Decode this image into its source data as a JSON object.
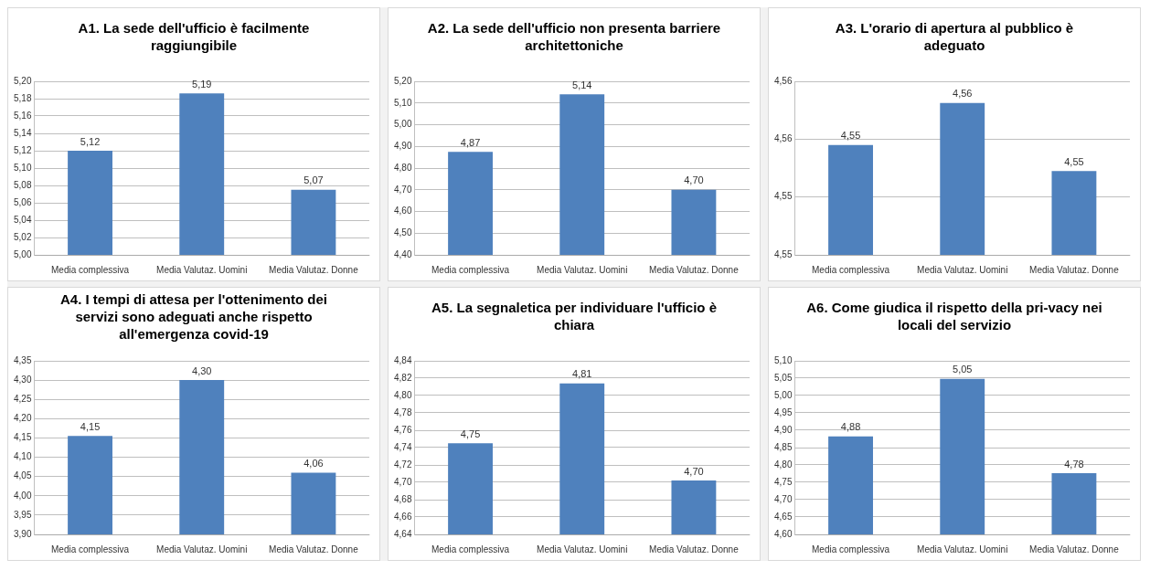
{
  "chart_data": [
    {
      "type": "bar",
      "title": "A1. La sede dell'ufficio è facilmente raggiungibile",
      "categories": [
        "Media complessiva",
        "Media Valutaz. Uomini",
        "Media Valutaz. Donne"
      ],
      "values": [
        5.12,
        5.186,
        5.075
      ],
      "value_labels": [
        "5,12",
        "5,19",
        "5,07"
      ],
      "color": "#4f81bd",
      "ylim": [
        5.0,
        5.2
      ],
      "yticks": [
        {
          "value": 5.0,
          "label": "5,00"
        },
        {
          "value": 5.02,
          "label": "5,02"
        },
        {
          "value": 5.04,
          "label": "5,04"
        },
        {
          "value": 5.06,
          "label": "5,06"
        },
        {
          "value": 5.08,
          "label": "5,08"
        },
        {
          "value": 5.1,
          "label": "5,10"
        },
        {
          "value": 5.12,
          "label": "5,12"
        },
        {
          "value": 5.14,
          "label": "5,14"
        },
        {
          "value": 5.16,
          "label": "5,16"
        },
        {
          "value": 5.18,
          "label": "5,18"
        },
        {
          "value": 5.2,
          "label": "5,20"
        }
      ],
      "grid": "y"
    },
    {
      "type": "bar",
      "title": "A2. La sede dell'ufficio non presenta barriere architettoniche",
      "categories": [
        "Media complessiva",
        "Media Valutaz. Uomini",
        "Media Valutaz. Donne"
      ],
      "values": [
        4.875,
        5.14,
        4.7
      ],
      "value_labels": [
        "4,87",
        "5,14",
        "4,70"
      ],
      "color": "#4f81bd",
      "ylim": [
        4.4,
        5.2
      ],
      "yticks": [
        {
          "value": 4.4,
          "label": "4,40"
        },
        {
          "value": 4.5,
          "label": "4,50"
        },
        {
          "value": 4.6,
          "label": "4,60"
        },
        {
          "value": 4.7,
          "label": "4,70"
        },
        {
          "value": 4.8,
          "label": "4,80"
        },
        {
          "value": 4.9,
          "label": "4,90"
        },
        {
          "value": 5.0,
          "label": "5,00"
        },
        {
          "value": 5.1,
          "label": "5,10"
        },
        {
          "value": 5.2,
          "label": "5,20"
        }
      ],
      "grid": "y"
    },
    {
      "type": "bar",
      "title": "A3. L'orario di apertura al pubblico è adeguato",
      "categories": [
        "Media complessiva",
        "Media Valutaz. Uomini",
        "Media Valutaz. Donne"
      ],
      "values": [
        4.5546,
        4.5575,
        4.5528
      ],
      "value_labels": [
        "4,55",
        "4,56",
        "4,55"
      ],
      "color": "#4f81bd",
      "ylim": [
        4.547,
        4.559
      ],
      "yticks": [
        {
          "value": 4.547,
          "label": "4,55"
        },
        {
          "value": 4.551,
          "label": "4,55"
        },
        {
          "value": 4.555,
          "label": "4,56"
        },
        {
          "value": 4.559,
          "label": "4,56"
        }
      ],
      "grid": "y"
    },
    {
      "type": "bar",
      "title": "A4. I tempi di attesa per l'ottenimento dei servizi sono adeguati anche rispetto all'emergenza covid-19",
      "categories": [
        "Media complessiva",
        "Media Valutaz. Uomini",
        "Media Valutaz. Donne"
      ],
      "values": [
        4.155,
        4.3,
        4.06
      ],
      "value_labels": [
        "4,15",
        "4,30",
        "4,06"
      ],
      "color": "#4f81bd",
      "ylim": [
        3.9,
        4.35
      ],
      "yticks": [
        {
          "value": 3.9,
          "label": "3,90"
        },
        {
          "value": 3.95,
          "label": "3,95"
        },
        {
          "value": 4.0,
          "label": "4,00"
        },
        {
          "value": 4.05,
          "label": "4,05"
        },
        {
          "value": 4.1,
          "label": "4,10"
        },
        {
          "value": 4.15,
          "label": "4,15"
        },
        {
          "value": 4.2,
          "label": "4,20"
        },
        {
          "value": 4.25,
          "label": "4,25"
        },
        {
          "value": 4.3,
          "label": "4,30"
        },
        {
          "value": 4.35,
          "label": "4,35"
        }
      ],
      "grid": "y"
    },
    {
      "type": "bar",
      "title": "A5. La segnaletica per individuare l'ufficio è chiara",
      "categories": [
        "Media complessiva",
        "Media Valutaz. Uomini",
        "Media Valutaz. Donne"
      ],
      "values": [
        4.745,
        4.814,
        4.702
      ],
      "value_labels": [
        "4,75",
        "4,81",
        "4,70"
      ],
      "color": "#4f81bd",
      "ylim": [
        4.64,
        4.84
      ],
      "yticks": [
        {
          "value": 4.64,
          "label": "4,64"
        },
        {
          "value": 4.66,
          "label": "4,66"
        },
        {
          "value": 4.68,
          "label": "4,68"
        },
        {
          "value": 4.7,
          "label": "4,70"
        },
        {
          "value": 4.72,
          "label": "4,72"
        },
        {
          "value": 4.74,
          "label": "4,74"
        },
        {
          "value": 4.76,
          "label": "4,76"
        },
        {
          "value": 4.78,
          "label": "4,78"
        },
        {
          "value": 4.8,
          "label": "4,80"
        },
        {
          "value": 4.82,
          "label": "4,82"
        },
        {
          "value": 4.84,
          "label": "4,84"
        }
      ],
      "grid": "y"
    },
    {
      "type": "bar",
      "title": "A6. Come giudica il rispetto della pri-vacy nei locali del servizio",
      "categories": [
        "Media complessiva",
        "Media Valutaz. Uomini",
        "Media Valutaz. Donne"
      ],
      "values": [
        4.882,
        5.048,
        4.776
      ],
      "value_labels": [
        "4,88",
        "5,05",
        "4,78"
      ],
      "color": "#4f81bd",
      "ylim": [
        4.6,
        5.1
      ],
      "yticks": [
        {
          "value": 4.6,
          "label": "4,60"
        },
        {
          "value": 4.65,
          "label": "4,65"
        },
        {
          "value": 4.7,
          "label": "4,70"
        },
        {
          "value": 4.75,
          "label": "4,75"
        },
        {
          "value": 4.8,
          "label": "4,80"
        },
        {
          "value": 4.85,
          "label": "4,85"
        },
        {
          "value": 4.9,
          "label": "4,90"
        },
        {
          "value": 4.95,
          "label": "4,95"
        },
        {
          "value": 5.0,
          "label": "5,00"
        },
        {
          "value": 5.05,
          "label": "5,05"
        },
        {
          "value": 5.1,
          "label": "5,10"
        }
      ],
      "grid": "y"
    }
  ]
}
